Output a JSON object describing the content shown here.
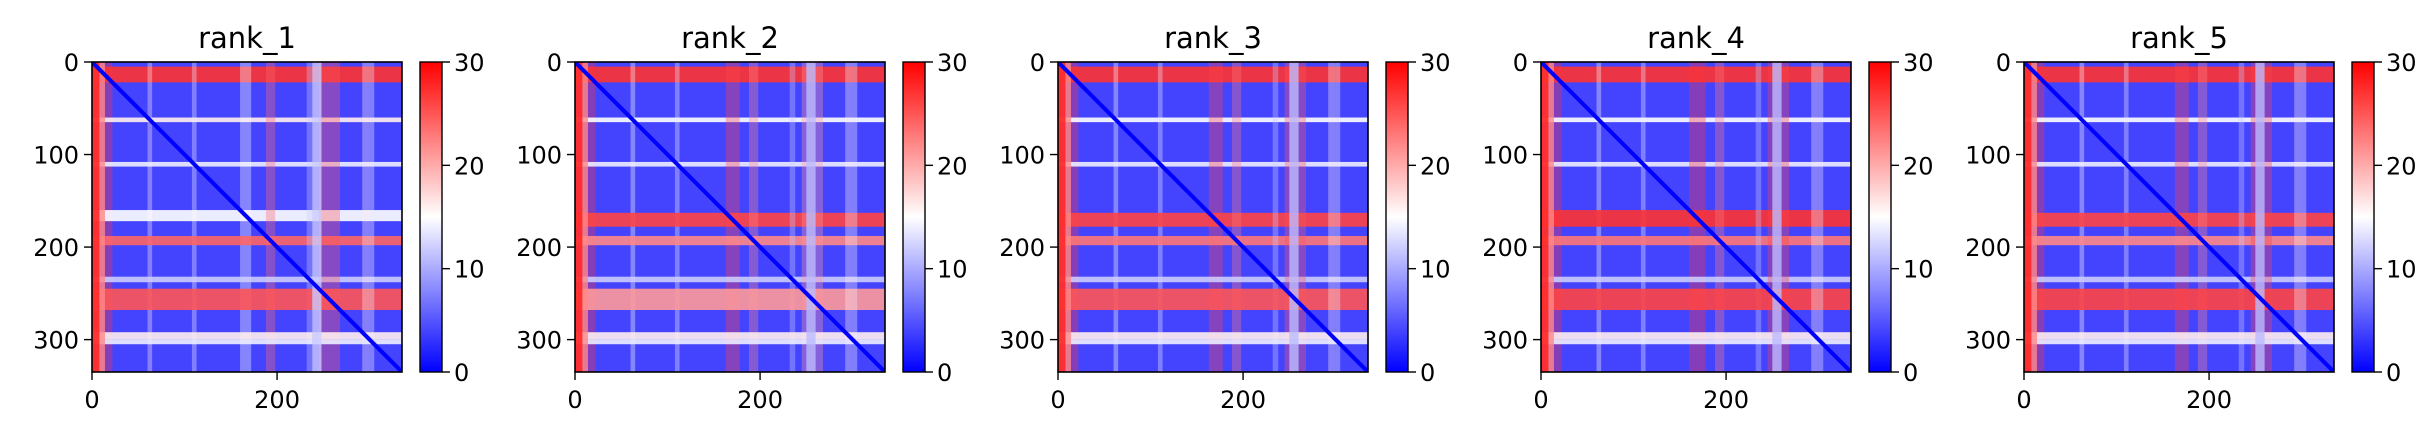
{
  "chart_data": [
    {
      "type": "heatmap",
      "title": "rank_1",
      "xticks": [
        0,
        200
      ],
      "yticks": [
        0,
        100,
        200,
        300
      ],
      "xlim": [
        0,
        335
      ],
      "ylim": [
        335,
        0
      ],
      "colorbar": {
        "ticks": [
          0,
          10,
          20,
          30
        ],
        "range": [
          0,
          30
        ],
        "colormap": "bwr"
      },
      "rows": [
        {
          "start": 5,
          "end": 22,
          "value": 27
        },
        {
          "start": 60,
          "end": 65,
          "value": 16
        },
        {
          "start": 108,
          "end": 113,
          "value": 14
        },
        {
          "start": 160,
          "end": 172,
          "value": 15
        },
        {
          "start": 188,
          "end": 198,
          "value": 24
        },
        {
          "start": 232,
          "end": 238,
          "value": 12
        },
        {
          "start": 245,
          "end": 268,
          "value": 25
        },
        {
          "start": 292,
          "end": 300,
          "value": 16
        },
        {
          "start": 300,
          "end": 305,
          "value": 14
        }
      ],
      "cols": [
        {
          "start": 0,
          "end": 14,
          "value": 22
        },
        {
          "start": 238,
          "end": 248,
          "value": 12
        }
      ],
      "blocks": [
        {
          "x0": 0,
          "x1": 8,
          "y0": 0,
          "y1": 335,
          "value": 28
        }
      ],
      "base_value": 4
    },
    {
      "type": "heatmap",
      "title": "rank_2",
      "xticks": [
        0,
        200
      ],
      "yticks": [
        0,
        100,
        200,
        300
      ],
      "xlim": [
        0,
        335
      ],
      "ylim": [
        335,
        0
      ],
      "colorbar": {
        "ticks": [
          0,
          10,
          20,
          30
        ],
        "range": [
          0,
          30
        ],
        "colormap": "bwr"
      },
      "rows": [
        {
          "start": 5,
          "end": 22,
          "value": 27
        },
        {
          "start": 60,
          "end": 65,
          "value": 15
        },
        {
          "start": 108,
          "end": 113,
          "value": 14
        },
        {
          "start": 163,
          "end": 178,
          "value": 26
        },
        {
          "start": 188,
          "end": 198,
          "value": 22
        },
        {
          "start": 232,
          "end": 238,
          "value": 12
        },
        {
          "start": 245,
          "end": 268,
          "value": 21
        },
        {
          "start": 292,
          "end": 300,
          "value": 16
        },
        {
          "start": 300,
          "end": 305,
          "value": 14
        }
      ],
      "cols": [
        {
          "start": 0,
          "end": 14,
          "value": 22
        },
        {
          "start": 250,
          "end": 260,
          "value": 11
        }
      ],
      "blocks": [
        {
          "x0": 0,
          "x1": 8,
          "y0": 0,
          "y1": 335,
          "value": 28
        }
      ],
      "base_value": 4
    },
    {
      "type": "heatmap",
      "title": "rank_3",
      "xticks": [
        0,
        200
      ],
      "yticks": [
        0,
        100,
        200,
        300
      ],
      "xlim": [
        0,
        335
      ],
      "ylim": [
        335,
        0
      ],
      "colorbar": {
        "ticks": [
          0,
          10,
          20,
          30
        ],
        "range": [
          0,
          30
        ],
        "colormap": "bwr"
      },
      "rows": [
        {
          "start": 5,
          "end": 22,
          "value": 27
        },
        {
          "start": 60,
          "end": 65,
          "value": 15
        },
        {
          "start": 108,
          "end": 113,
          "value": 14
        },
        {
          "start": 163,
          "end": 178,
          "value": 26
        },
        {
          "start": 188,
          "end": 198,
          "value": 23
        },
        {
          "start": 232,
          "end": 238,
          "value": 12
        },
        {
          "start": 245,
          "end": 268,
          "value": 25
        },
        {
          "start": 292,
          "end": 300,
          "value": 16
        },
        {
          "start": 300,
          "end": 305,
          "value": 14
        }
      ],
      "cols": [
        {
          "start": 0,
          "end": 14,
          "value": 22
        },
        {
          "start": 250,
          "end": 260,
          "value": 11
        }
      ],
      "blocks": [
        {
          "x0": 0,
          "x1": 8,
          "y0": 0,
          "y1": 335,
          "value": 28
        }
      ],
      "base_value": 4
    },
    {
      "type": "heatmap",
      "title": "rank_4",
      "xticks": [
        0,
        200
      ],
      "yticks": [
        0,
        100,
        200,
        300
      ],
      "xlim": [
        0,
        335
      ],
      "ylim": [
        335,
        0
      ],
      "colorbar": {
        "ticks": [
          0,
          10,
          20,
          30
        ],
        "range": [
          0,
          30
        ],
        "colormap": "bwr"
      },
      "rows": [
        {
          "start": 5,
          "end": 22,
          "value": 27
        },
        {
          "start": 60,
          "end": 65,
          "value": 15
        },
        {
          "start": 108,
          "end": 113,
          "value": 14
        },
        {
          "start": 160,
          "end": 178,
          "value": 27
        },
        {
          "start": 188,
          "end": 198,
          "value": 23
        },
        {
          "start": 232,
          "end": 238,
          "value": 12
        },
        {
          "start": 245,
          "end": 268,
          "value": 26
        },
        {
          "start": 292,
          "end": 300,
          "value": 16
        },
        {
          "start": 300,
          "end": 305,
          "value": 14
        }
      ],
      "cols": [
        {
          "start": 0,
          "end": 14,
          "value": 22
        },
        {
          "start": 250,
          "end": 260,
          "value": 11
        }
      ],
      "blocks": [
        {
          "x0": 0,
          "x1": 8,
          "y0": 0,
          "y1": 335,
          "value": 28
        }
      ],
      "base_value": 4
    },
    {
      "type": "heatmap",
      "title": "rank_5",
      "xticks": [
        0,
        200
      ],
      "yticks": [
        0,
        100,
        200,
        300
      ],
      "xlim": [
        0,
        335
      ],
      "ylim": [
        335,
        0
      ],
      "colorbar": {
        "ticks": [
          0,
          10,
          20,
          30
        ],
        "range": [
          0,
          30
        ],
        "colormap": "bwr"
      },
      "rows": [
        {
          "start": 5,
          "end": 22,
          "value": 27
        },
        {
          "start": 60,
          "end": 65,
          "value": 15
        },
        {
          "start": 108,
          "end": 113,
          "value": 14
        },
        {
          "start": 163,
          "end": 178,
          "value": 26
        },
        {
          "start": 188,
          "end": 198,
          "value": 22
        },
        {
          "start": 232,
          "end": 238,
          "value": 12
        },
        {
          "start": 245,
          "end": 268,
          "value": 26
        },
        {
          "start": 292,
          "end": 300,
          "value": 16
        },
        {
          "start": 300,
          "end": 305,
          "value": 14
        }
      ],
      "cols": [
        {
          "start": 0,
          "end": 14,
          "value": 22
        },
        {
          "start": 250,
          "end": 260,
          "value": 11
        }
      ],
      "blocks": [
        {
          "x0": 0,
          "x1": 8,
          "y0": 0,
          "y1": 335,
          "value": 28
        }
      ],
      "base_value": 4
    }
  ]
}
